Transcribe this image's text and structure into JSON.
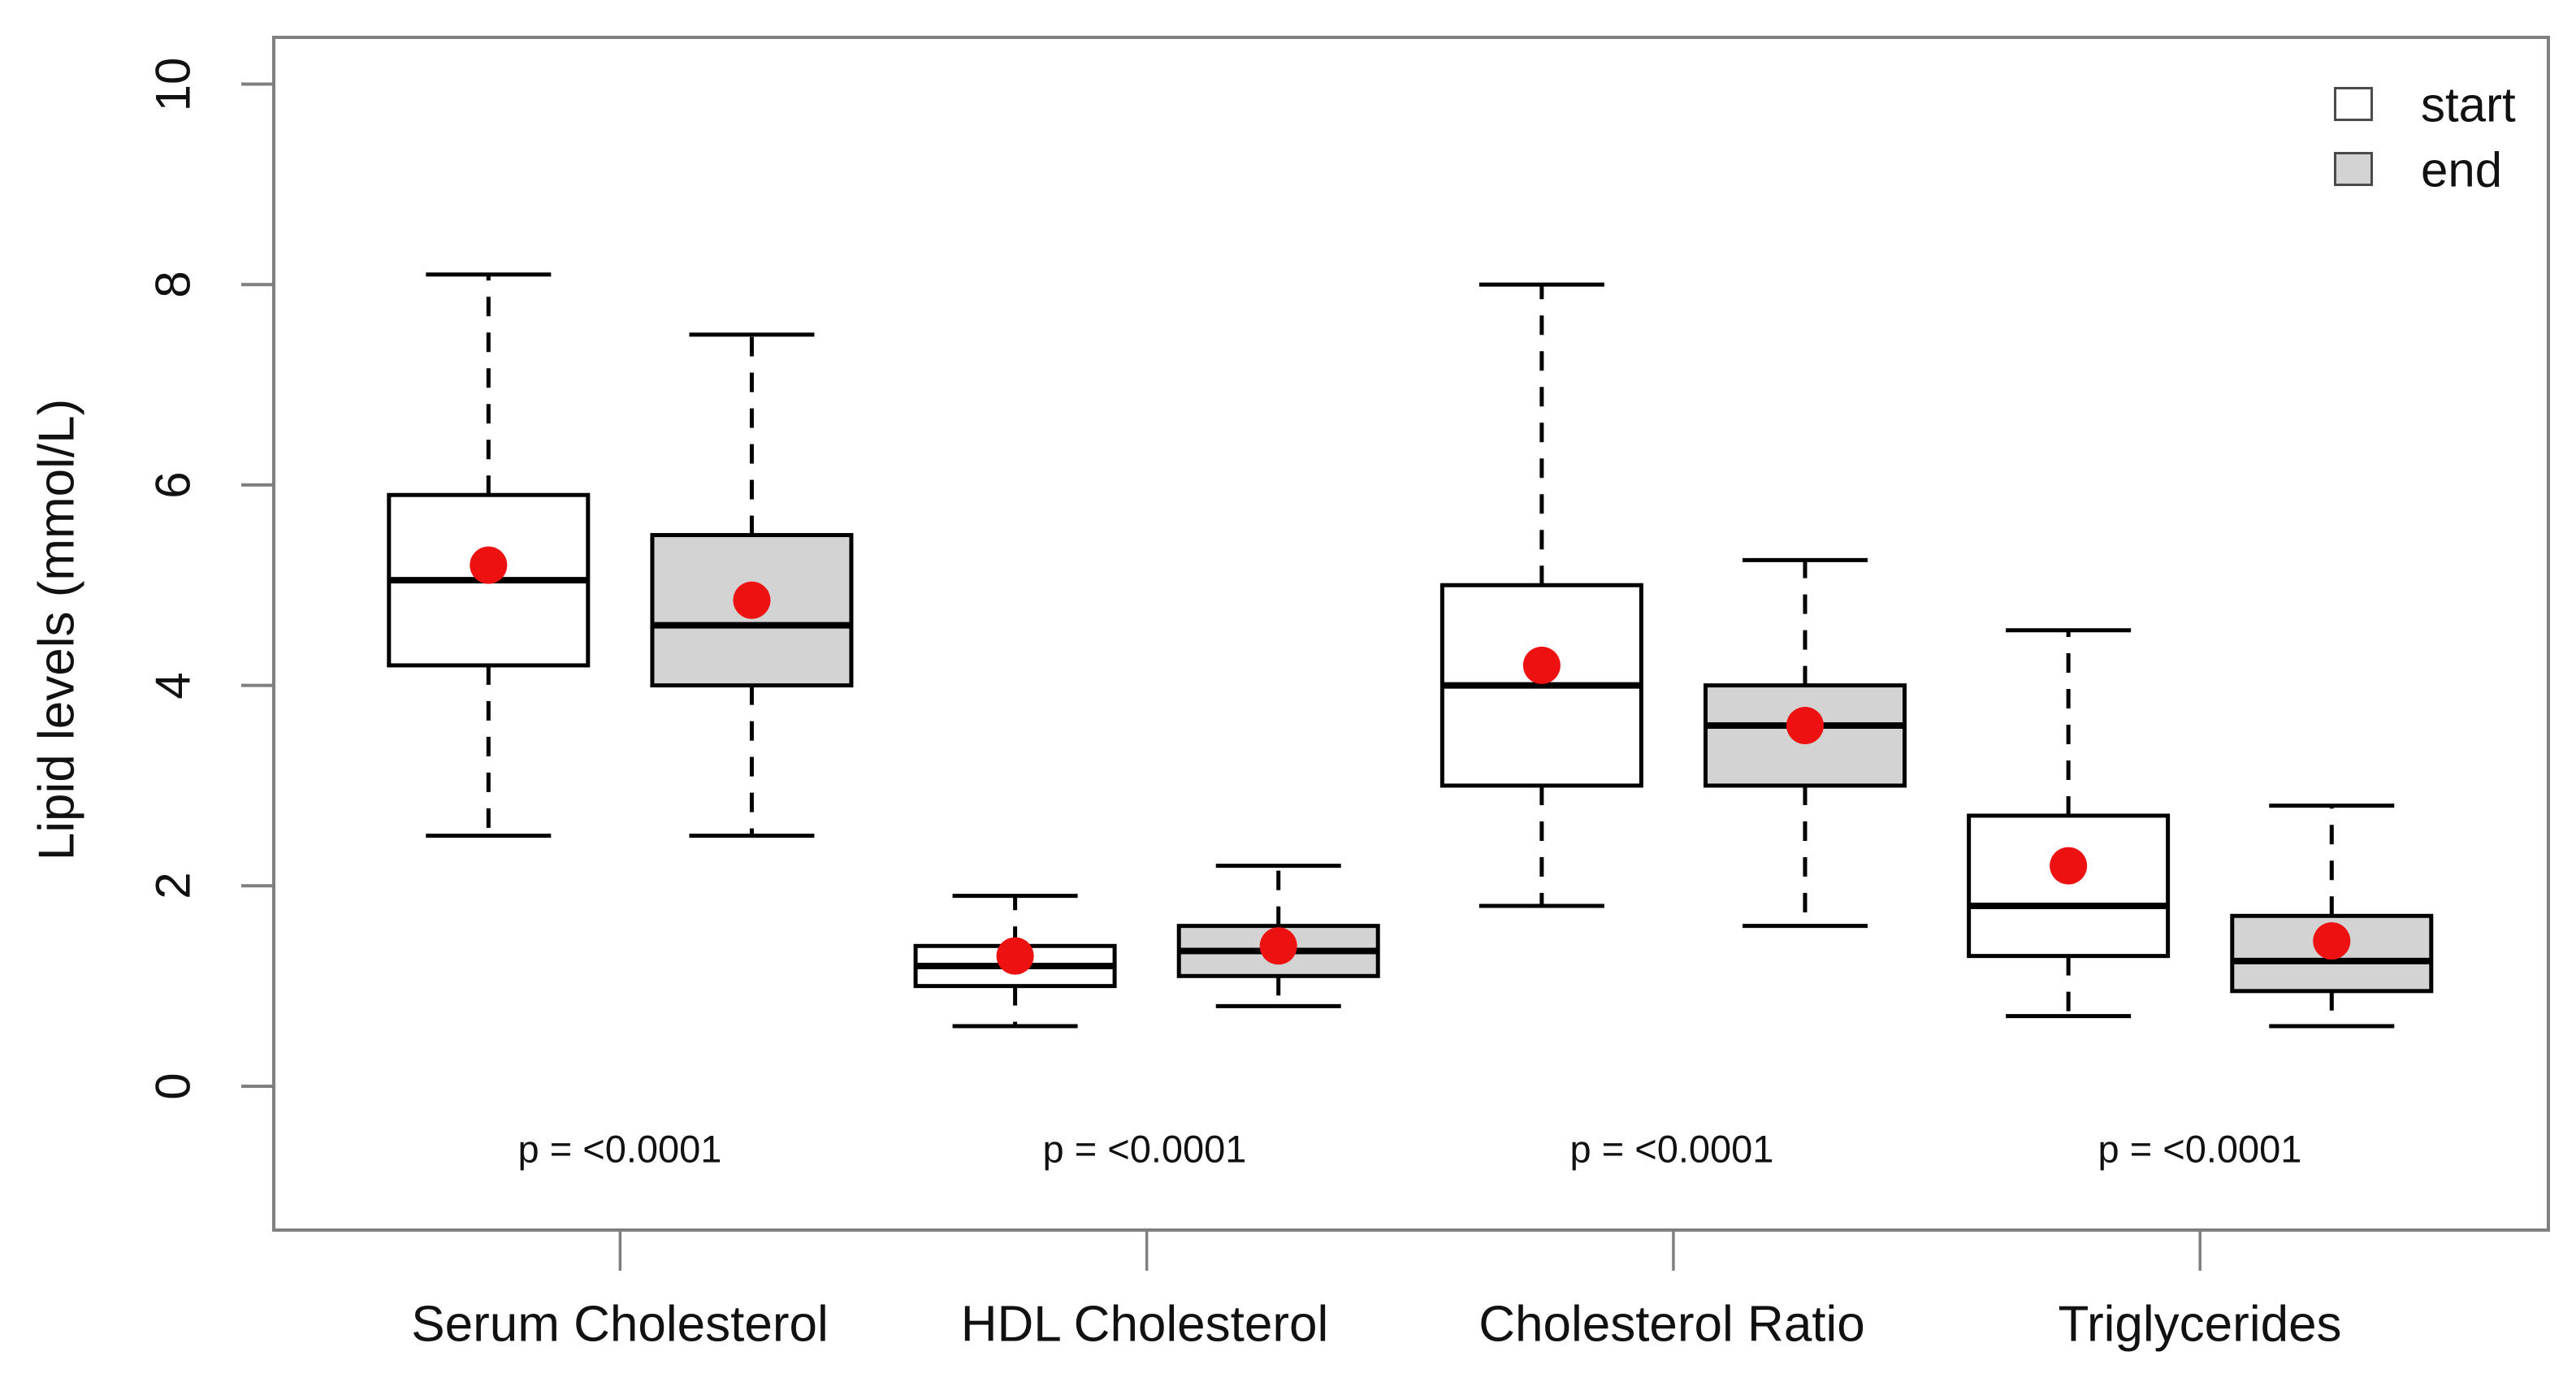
{
  "chart_data": {
    "type": "box",
    "title": "",
    "xlabel": "",
    "ylabel": "Lipid levels (mmol/L)",
    "ylim": [
      0,
      10
    ],
    "yticks": [
      "0",
      "2",
      "4",
      "6",
      "8",
      "10"
    ],
    "grid": false,
    "legend_position": "top-right",
    "legend": [
      {
        "label": "start",
        "fill": "#ffffff"
      },
      {
        "label": "end",
        "fill": "#d3d3d3"
      }
    ],
    "colors": {
      "box_border": "#000000",
      "median_line": "#000000",
      "whisker": "#000000",
      "mean_dot": "#ee1111",
      "frame": "#7f7f7f",
      "axis_tick": "#7f7f7f",
      "start_fill": "#ffffff",
      "end_fill": "#d3d3d3"
    },
    "groups": [
      {
        "label": "Serum Cholesterol",
        "p_text": "p = <0.0001",
        "boxes": [
          {
            "series": "start",
            "whisker_low": 2.5,
            "q1": 4.2,
            "median": 5.05,
            "q3": 5.9,
            "whisker_high": 8.1,
            "mean": 5.2
          },
          {
            "series": "end",
            "whisker_low": 2.5,
            "q1": 4.0,
            "median": 4.6,
            "q3": 5.5,
            "whisker_high": 7.5,
            "mean": 4.85
          }
        ]
      },
      {
        "label": "HDL Cholesterol",
        "p_text": "p = <0.0001",
        "boxes": [
          {
            "series": "start",
            "whisker_low": 0.6,
            "q1": 1.0,
            "median": 1.2,
            "q3": 1.4,
            "whisker_high": 1.9,
            "mean": 1.3
          },
          {
            "series": "end",
            "whisker_low": 0.8,
            "q1": 1.1,
            "median": 1.35,
            "q3": 1.6,
            "whisker_high": 2.2,
            "mean": 1.4
          }
        ]
      },
      {
        "label": "Cholesterol Ratio",
        "p_text": "p = <0.0001",
        "boxes": [
          {
            "series": "start",
            "whisker_low": 1.8,
            "q1": 3.0,
            "median": 4.0,
            "q3": 5.0,
            "whisker_high": 8.0,
            "mean": 4.2
          },
          {
            "series": "end",
            "whisker_low": 1.6,
            "q1": 3.0,
            "median": 3.6,
            "q3": 4.0,
            "whisker_high": 5.25,
            "mean": 3.6
          }
        ]
      },
      {
        "label": "Triglycerides",
        "p_text": "p = <0.0001",
        "boxes": [
          {
            "series": "start",
            "whisker_low": 0.7,
            "q1": 1.3,
            "median": 1.8,
            "q3": 2.7,
            "whisker_high": 4.55,
            "mean": 2.2
          },
          {
            "series": "end",
            "whisker_low": 0.6,
            "q1": 0.95,
            "median": 1.25,
            "q3": 1.7,
            "whisker_high": 2.8,
            "mean": 1.45
          }
        ]
      }
    ]
  }
}
